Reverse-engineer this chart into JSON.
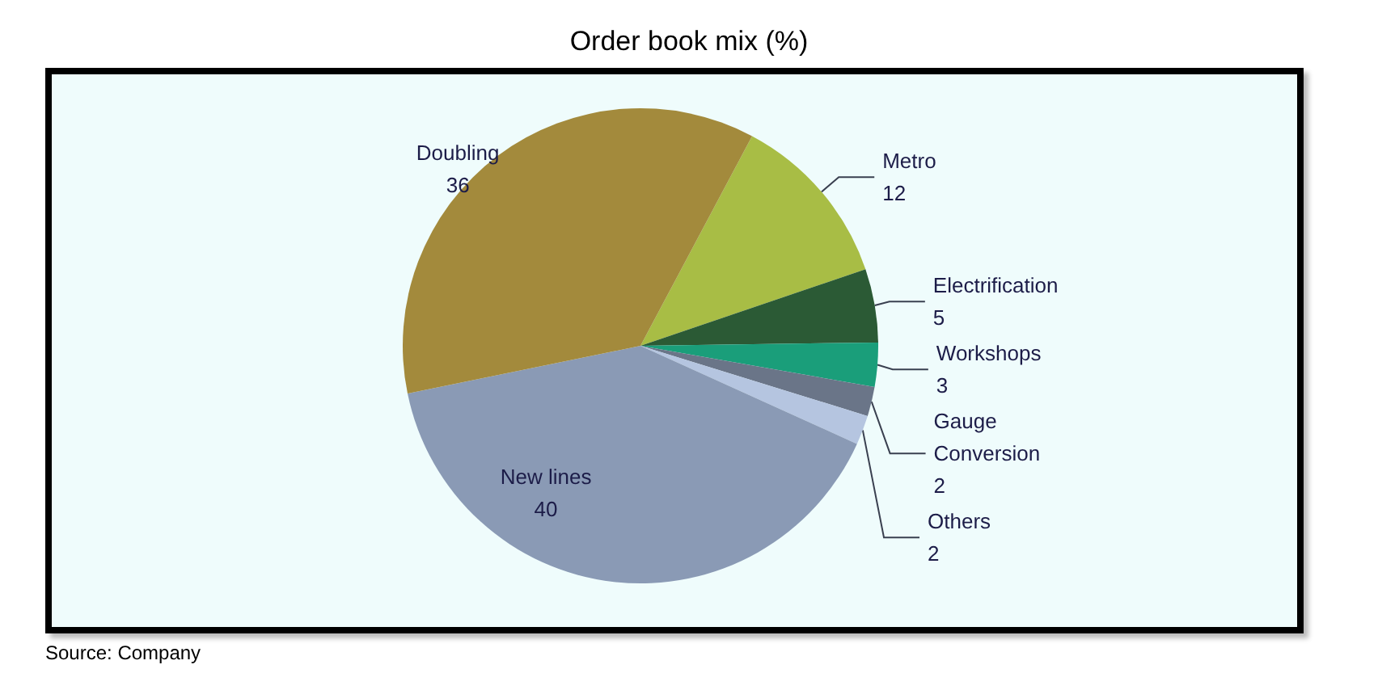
{
  "chart_data": {
    "type": "pie",
    "title": "Order book mix (%)",
    "categories": [
      "Metro",
      "Electrification",
      "Workshops",
      "Gauge Conversion",
      "Others",
      "New lines",
      "Doubling"
    ],
    "values": [
      12,
      5,
      3,
      2,
      2,
      40,
      36
    ],
    "colors": [
      "#a8bd45",
      "#2b5a35",
      "#1a9e7a",
      "#6a7588",
      "#b5c5e0",
      "#8a9ab5",
      "#a38a3c"
    ],
    "data_labels": true,
    "annotations": [
      "Source: Company"
    ]
  }
}
